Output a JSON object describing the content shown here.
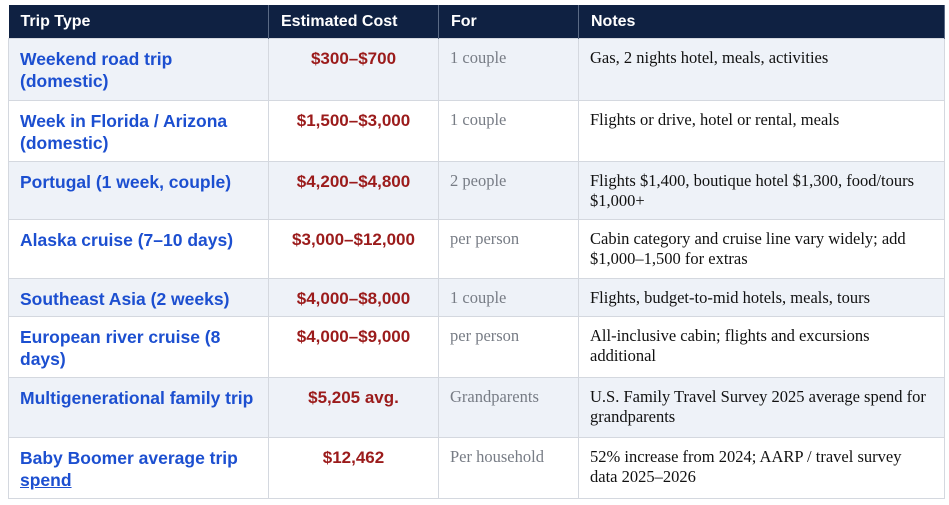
{
  "table": {
    "header": [
      "Trip Type",
      "Estimated Cost",
      "For",
      "Notes"
    ],
    "rows": [
      {
        "trip": "Weekend road trip (domestic)",
        "cost": "$300–$700",
        "for": "1 couple",
        "notes": "Gas, 2 nights hotel, meals, activities"
      },
      {
        "trip": "Week in Florida / Arizona (domestic)",
        "cost": "$1,500–$3,000",
        "for": "1 couple",
        "notes": "Flights or drive, hotel or rental, meals"
      },
      {
        "trip": "Portugal (1 week, couple)",
        "cost": "$4,200–$4,800",
        "for": "2 people",
        "notes": "Flights $1,400, boutique hotel $1,300, food/tours $1,000+"
      },
      {
        "trip": "Alaska cruise (7–10 days)",
        "cost": "$3,000–$12,000",
        "for": "per person",
        "notes": "Cabin category and cruise line vary widely; add $1,000–1,500 for extras"
      },
      {
        "trip": "Southeast Asia (2 weeks)",
        "cost": "$4,000–$8,000",
        "for": "1 couple",
        "notes": "Flights, budget-to-mid hotels, meals, tours"
      },
      {
        "trip": "European river cruise (8 days)",
        "cost": "$4,000–$9,000",
        "for": "per person",
        "notes": "All-inclusive cabin; flights and excursions additional"
      },
      {
        "trip": "Multigenerational family trip",
        "cost": "$5,205 avg.",
        "for": "Grandparents",
        "notes": "U.S. Family Travel Survey 2025 average spend for grandparents"
      },
      {
        "trip": "Baby Boomer average trip",
        "trip_link": "spend",
        "cost": "$12,462",
        "for": "Per household",
        "notes": "52% increase from 2024; AARP / travel survey data 2025–2026"
      }
    ]
  }
}
